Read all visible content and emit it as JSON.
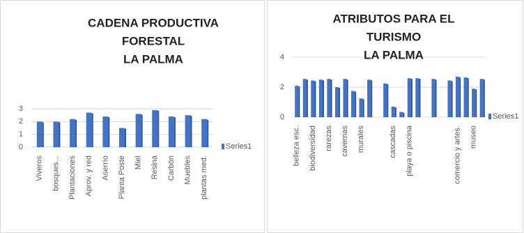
{
  "chart_data": [
    {
      "type": "bar",
      "title": [
        "CADENA PRODUCTIVA",
        "FORESTAL",
        "LA PALMA"
      ],
      "categories": [
        "Viveros",
        "bosques...",
        "Plantaciones",
        "Aprov. y red",
        "Aserrío",
        "Planta Poste",
        "Miel",
        "Resina",
        "Carbón",
        "Muebles",
        "plantas med."
      ],
      "series": [
        {
          "name": "Series1",
          "color": "#4472c4",
          "values": [
            2.0,
            2.0,
            2.2,
            2.7,
            2.4,
            1.5,
            2.6,
            2.9,
            2.4,
            2.5,
            2.2
          ]
        }
      ],
      "ylim": [
        0,
        3
      ],
      "yticks": [
        0,
        1,
        2,
        3
      ],
      "grid": true,
      "legend": "right"
    },
    {
      "type": "bar",
      "title": [
        "ATRIBUTOS PARA EL",
        "TURISMO",
        "LA PALMA"
      ],
      "categories": [
        "belleza esc.",
        null,
        "biodiversidad",
        null,
        "rarezas",
        null,
        "cavernas",
        null,
        "murales",
        null,
        null,
        null,
        "cascadas",
        null,
        "playa o piscina",
        null,
        null,
        null,
        null,
        null,
        "comercio y artes.",
        null,
        "museo",
        null
      ],
      "series": [
        {
          "name": "Series1",
          "color": "#4472c4",
          "values": [
            2.1,
            2.55,
            2.45,
            2.5,
            2.55,
            2.0,
            2.55,
            1.75,
            1.25,
            2.5,
            null,
            2.25,
            0.7,
            0.35,
            2.6,
            2.6,
            null,
            2.55,
            null,
            2.45,
            2.7,
            2.65,
            1.9,
            2.55
          ]
        }
      ],
      "ylim": [
        0,
        4
      ],
      "yticks": [
        0,
        2,
        4
      ],
      "grid": true,
      "legend": "right"
    }
  ]
}
